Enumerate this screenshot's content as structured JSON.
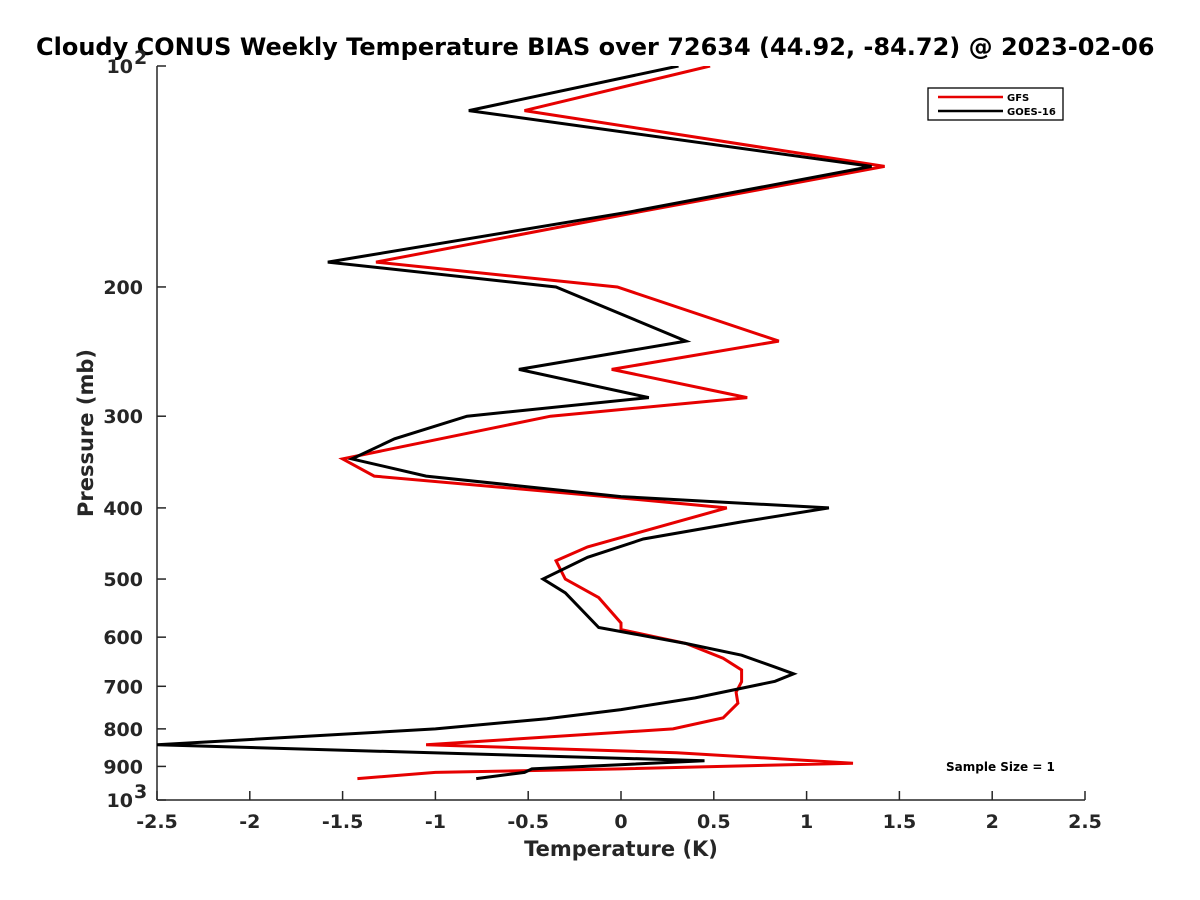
{
  "chart_data": {
    "type": "line",
    "title": "Cloudy CONUS Weekly Temperature BIAS over 72634 (44.92, -84.72) @ 2023-02-06",
    "xlabel": "Temperature (K)",
    "ylabel": "Pressure (mb)",
    "xlim": [
      -2.5,
      2.5
    ],
    "ylim": [
      100,
      1000
    ],
    "y_scale": "log",
    "y_reversed": true,
    "x_ticks": [
      -2.5,
      -2,
      -1.5,
      -1,
      -0.5,
      0,
      0.5,
      1,
      1.5,
      2,
      2.5
    ],
    "x_tick_labels": [
      "-2.5",
      "-2",
      "-1.5",
      "-1",
      "-0.5",
      "0",
      "0.5",
      "1",
      "1.5",
      "2",
      "2.5"
    ],
    "y_ticks": [
      100,
      200,
      300,
      400,
      500,
      600,
      700,
      800,
      900,
      1000
    ],
    "y_tick_labels": [
      {
        "base": "10",
        "exp": "2"
      },
      {
        "base": "200",
        "exp": ""
      },
      {
        "base": "300",
        "exp": ""
      },
      {
        "base": "400",
        "exp": ""
      },
      {
        "base": "500",
        "exp": ""
      },
      {
        "base": "600",
        "exp": ""
      },
      {
        "base": "700",
        "exp": ""
      },
      {
        "base": "800",
        "exp": ""
      },
      {
        "base": "900",
        "exp": ""
      },
      {
        "base": "10",
        "exp": "3"
      }
    ],
    "legend_position": "top-right",
    "annotation": "Sample Size = 1",
    "series": [
      {
        "name": "GFS",
        "color": "#e60000",
        "points": [
          {
            "x": 0.48,
            "p": 100
          },
          {
            "x": -0.52,
            "p": 115
          },
          {
            "x": 1.42,
            "p": 137
          },
          {
            "x": 0.1,
            "p": 158
          },
          {
            "x": -1.32,
            "p": 185
          },
          {
            "x": -0.02,
            "p": 200
          },
          {
            "x": 0.85,
            "p": 237
          },
          {
            "x": -0.05,
            "p": 259
          },
          {
            "x": 0.68,
            "p": 283
          },
          {
            "x": -0.38,
            "p": 300
          },
          {
            "x": -1.5,
            "p": 343
          },
          {
            "x": -1.33,
            "p": 362
          },
          {
            "x": -0.08,
            "p": 386
          },
          {
            "x": 0.57,
            "p": 400
          },
          {
            "x": -0.18,
            "p": 452
          },
          {
            "x": -0.35,
            "p": 472
          },
          {
            "x": -0.3,
            "p": 500
          },
          {
            "x": -0.12,
            "p": 530
          },
          {
            "x": 0.0,
            "p": 574
          },
          {
            "x": 0.0,
            "p": 586
          },
          {
            "x": 0.35,
            "p": 612
          },
          {
            "x": 0.55,
            "p": 641
          },
          {
            "x": 0.65,
            "p": 665
          },
          {
            "x": 0.65,
            "p": 690
          },
          {
            "x": 0.62,
            "p": 713
          },
          {
            "x": 0.63,
            "p": 738
          },
          {
            "x": 0.55,
            "p": 773
          },
          {
            "x": 0.28,
            "p": 800
          },
          {
            "x": -1.05,
            "p": 841
          },
          {
            "x": 0.3,
            "p": 862
          },
          {
            "x": 1.25,
            "p": 891
          },
          {
            "x": 0.0,
            "p": 907
          },
          {
            "x": -1.0,
            "p": 917
          },
          {
            "x": -1.42,
            "p": 935
          }
        ]
      },
      {
        "name": "GOES-16",
        "color": "#000000",
        "points": [
          {
            "x": 0.31,
            "p": 100
          },
          {
            "x": -0.82,
            "p": 115
          },
          {
            "x": 1.35,
            "p": 137
          },
          {
            "x": 0.05,
            "p": 158
          },
          {
            "x": -1.58,
            "p": 185
          },
          {
            "x": -0.35,
            "p": 200
          },
          {
            "x": 0.35,
            "p": 237
          },
          {
            "x": -0.55,
            "p": 259
          },
          {
            "x": 0.15,
            "p": 283
          },
          {
            "x": -0.83,
            "p": 300
          },
          {
            "x": -1.22,
            "p": 322
          },
          {
            "x": -1.45,
            "p": 343
          },
          {
            "x": -1.05,
            "p": 362
          },
          {
            "x": 0.0,
            "p": 386
          },
          {
            "x": 1.12,
            "p": 400
          },
          {
            "x": 0.65,
            "p": 418
          },
          {
            "x": 0.12,
            "p": 441
          },
          {
            "x": -0.18,
            "p": 467
          },
          {
            "x": -0.42,
            "p": 500
          },
          {
            "x": -0.3,
            "p": 522
          },
          {
            "x": -0.12,
            "p": 582
          },
          {
            "x": 0.35,
            "p": 612
          },
          {
            "x": 0.65,
            "p": 635
          },
          {
            "x": 0.83,
            "p": 659
          },
          {
            "x": 0.93,
            "p": 673
          },
          {
            "x": 0.83,
            "p": 689
          },
          {
            "x": 0.4,
            "p": 726
          },
          {
            "x": 0.0,
            "p": 753
          },
          {
            "x": -0.4,
            "p": 775
          },
          {
            "x": -1.0,
            "p": 800
          },
          {
            "x": -2.5,
            "p": 841
          },
          {
            "x": 0.45,
            "p": 884
          },
          {
            "x": -0.48,
            "p": 907
          },
          {
            "x": -0.52,
            "p": 917
          },
          {
            "x": -0.78,
            "p": 935
          }
        ]
      }
    ]
  }
}
